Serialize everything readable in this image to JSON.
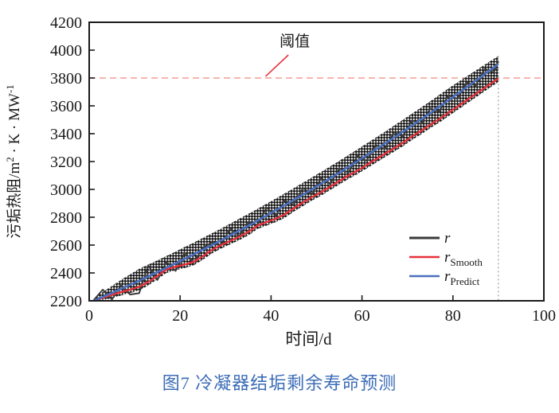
{
  "figure": {
    "caption": "图7  冷凝器结垢剩余寿命预测",
    "caption_color": "#3b6cb7"
  },
  "chart_data": {
    "type": "line",
    "title": "",
    "xlabel": "时间/d",
    "ylabel": "污垢热阻/m²·K·MW⁻¹",
    "ylabel_parts": [
      {
        "text": "污垢热阻/m"
      },
      {
        "text": "2",
        "sup": true
      },
      {
        "text": " · K · MW",
        "sup": false
      },
      {
        "text": "-1",
        "sup": true
      }
    ],
    "xlim": [
      0,
      100
    ],
    "ylim": [
      2200,
      4200
    ],
    "xticks": [
      0,
      20,
      40,
      60,
      80,
      100
    ],
    "yticks": [
      2200,
      2400,
      2600,
      2800,
      3000,
      3200,
      3400,
      3600,
      3800,
      4000,
      4200
    ],
    "grid": false,
    "legend_position": "lower right",
    "threshold": {
      "value": 3800,
      "label": "阈值",
      "label_at": [
        45.2,
        4030
      ],
      "leader_from": [
        43.8,
        3965
      ],
      "leader_to": [
        38.8,
        3812
      ],
      "label_color": "#e8313a",
      "line_color": "#f0867e"
    },
    "vline": {
      "x": 90,
      "from": 3958,
      "to": 2200,
      "color": "#8a8a8a"
    },
    "x": [
      1,
      3,
      5,
      7,
      9,
      11,
      13,
      15,
      17,
      19,
      21,
      23,
      25,
      27,
      29,
      31,
      33,
      35,
      37,
      39,
      41,
      43,
      45,
      47,
      49,
      51,
      53,
      55,
      57,
      59,
      61,
      63,
      65,
      67,
      69,
      71,
      73,
      75,
      77,
      79,
      81,
      83,
      85,
      87,
      89,
      90
    ],
    "series": [
      {
        "id": "r",
        "label_main": "r",
        "label_sub": "",
        "color": "#3a3a3a",
        "values": [
          2205,
          2280,
          2210,
          2310,
          2245,
          2255,
          2455,
          2350,
          2480,
          2415,
          2545,
          2475,
          2580,
          2620,
          2600,
          2720,
          2665,
          2760,
          2745,
          2870,
          2810,
          2920,
          2890,
          3010,
          2965,
          3080,
          3040,
          3150,
          3120,
          3240,
          3205,
          3320,
          3290,
          3410,
          3380,
          3495,
          3470,
          3580,
          3560,
          3675,
          3650,
          3770,
          3745,
          3865,
          3840,
          3920
        ]
      },
      {
        "id": "r_smooth",
        "label_main": "r",
        "label_sub": "Smooth",
        "color": "#e8313a",
        "values": [
          2200,
          2222,
          2243,
          2262,
          2280,
          2301,
          2335,
          2379,
          2425,
          2445,
          2460,
          2480,
          2520,
          2565,
          2600,
          2630,
          2660,
          2695,
          2740,
          2765,
          2790,
          2820,
          2865,
          2905,
          2945,
          2980,
          3020,
          3060,
          3100,
          3135,
          3175,
          3215,
          3255,
          3295,
          3335,
          3380,
          3420,
          3465,
          3505,
          3550,
          3595,
          3640,
          3685,
          3730,
          3775,
          3795
        ]
      },
      {
        "id": "r_predict",
        "label_main": "r",
        "label_sub": "Predict",
        "color": "#4a6fbe",
        "values": [
          2200,
          2228,
          2256,
          2285,
          2315,
          2344,
          2375,
          2406,
          2437,
          2469,
          2501,
          2533,
          2567,
          2600,
          2634,
          2669,
          2704,
          2739,
          2775,
          2812,
          2849,
          2886,
          2924,
          2962,
          3001,
          3040,
          3080,
          3120,
          3161,
          3202,
          3244,
          3286,
          3328,
          3372,
          3415,
          3459,
          3503,
          3548,
          3594,
          3640,
          3686,
          3733,
          3780,
          3828,
          3876,
          3900
        ]
      }
    ],
    "band": {
      "pattern": "crosshatch",
      "color": "#151515",
      "upper": [
        2215,
        2263,
        2306,
        2350,
        2390,
        2429,
        2460,
        2491,
        2522,
        2554,
        2586,
        2618,
        2652,
        2685,
        2719,
        2754,
        2789,
        2824,
        2860,
        2897,
        2934,
        2971,
        3009,
        3047,
        3086,
        3125,
        3165,
        3205,
        3246,
        3287,
        3329,
        3371,
        3413,
        3457,
        3500,
        3544,
        3588,
        3633,
        3679,
        3725,
        3768,
        3811,
        3854,
        3896,
        3938,
        3958
      ],
      "lower": [
        2200,
        2205,
        2219,
        2239,
        2256,
        2275,
        2310,
        2355,
        2400,
        2420,
        2435,
        2455,
        2495,
        2540,
        2575,
        2605,
        2635,
        2670,
        2715,
        2740,
        2765,
        2795,
        2840,
        2880,
        2920,
        2955,
        2995,
        3035,
        3075,
        3110,
        3150,
        3190,
        3230,
        3270,
        3310,
        3355,
        3395,
        3440,
        3480,
        3525,
        3570,
        3615,
        3660,
        3705,
        3750,
        3770
      ]
    }
  }
}
